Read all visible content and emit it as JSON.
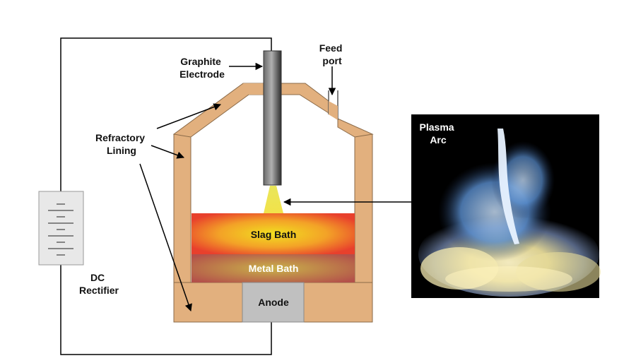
{
  "labels": {
    "graphite_electrode": [
      "Graphite",
      "Electrode"
    ],
    "feed_port": [
      "Feed",
      "port"
    ],
    "refractory_lining": [
      "Refractory",
      "Lining"
    ],
    "dc_rectifier": [
      "DC",
      "Rectifier"
    ],
    "slag_bath": "Slag Bath",
    "metal_bath": "Metal Bath",
    "anode": "Anode",
    "plasma_arc": [
      "Plasma",
      "Arc"
    ]
  },
  "colors": {
    "refractory": "#e2b07e",
    "slag_red": "#e8402c",
    "slag_yellow": "#f0d020",
    "metal": "#b85a4a",
    "anode": "#c0c0c0",
    "electrode_dark": "#3a3a3a",
    "electrode_light": "#a8a8a8",
    "arc": "#e8e060",
    "photo_bg": "#000000"
  }
}
